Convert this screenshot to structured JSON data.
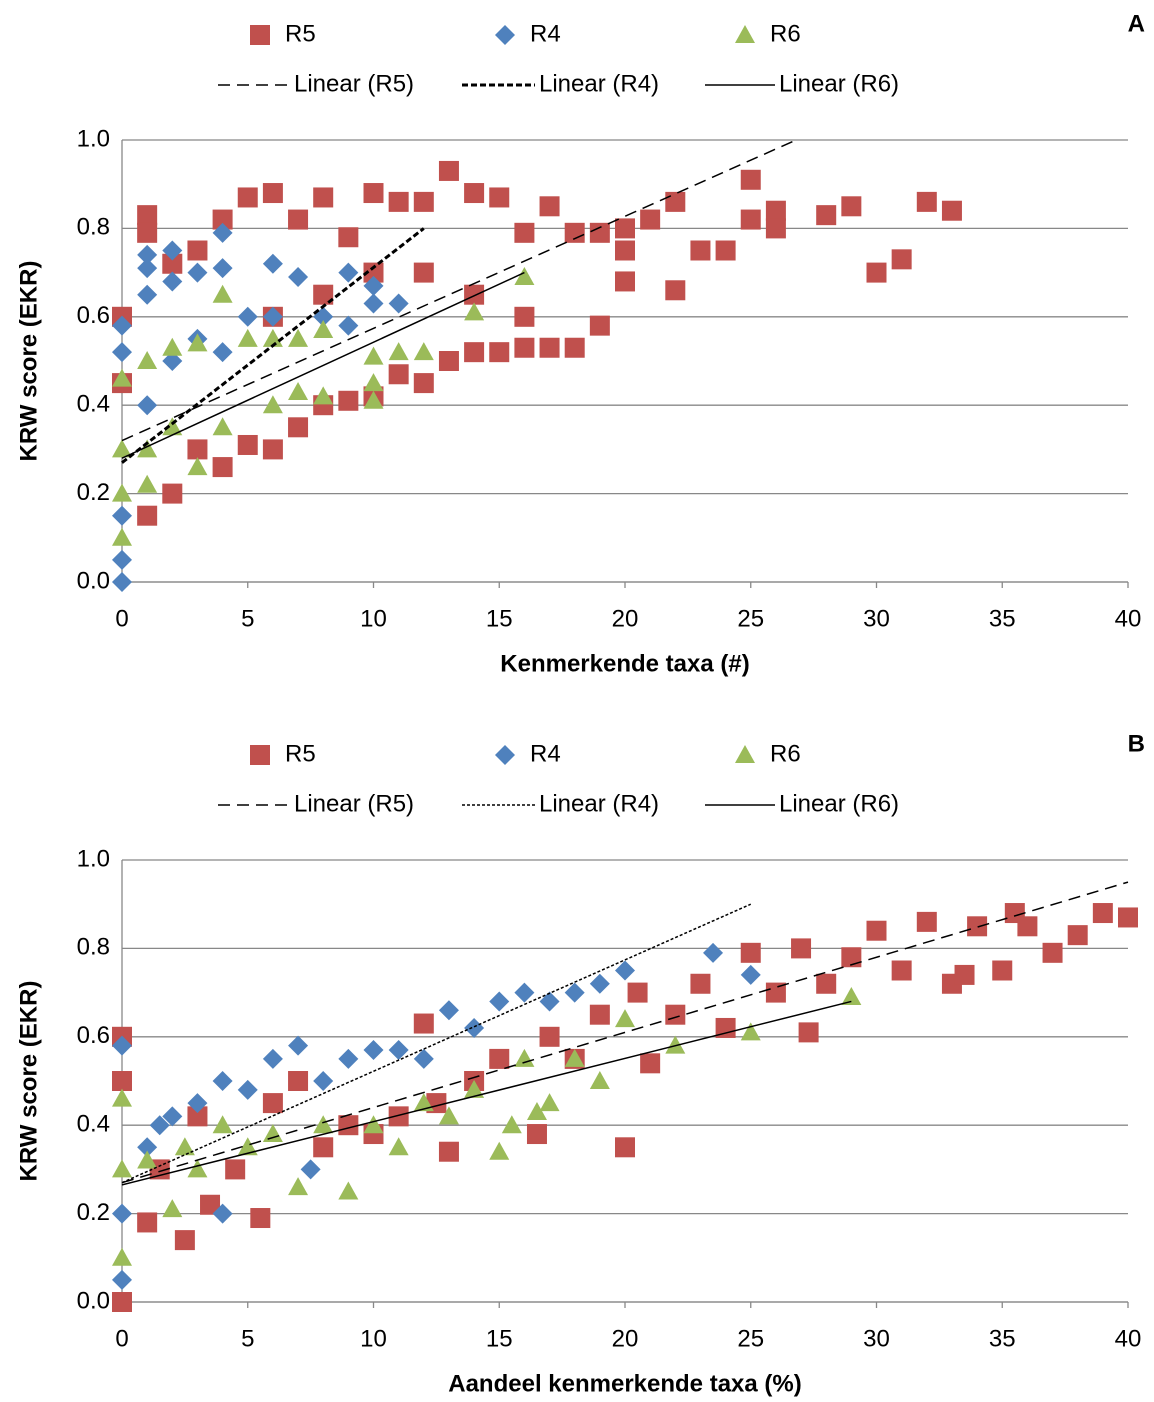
{
  "chart_data": [
    {
      "type": "scatter",
      "panel_label": "A",
      "x_label": "Kenmerkende taxa (#)",
      "y_label": "KRW score (EKR)",
      "xlim": [
        0,
        40
      ],
      "ylim": [
        0,
        1
      ],
      "xticks": [
        0,
        5,
        10,
        15,
        20,
        25,
        30,
        35,
        40
      ],
      "yticks": [
        {
          "value": 0,
          "label": "0.0"
        },
        0.2,
        0.4,
        0.6,
        0.8,
        {
          "value": 1,
          "label": "1.0"
        }
      ],
      "grid": true,
      "series": [
        {
          "name": "R5",
          "color": "#c0504d",
          "marker": "square",
          "x": [
            0,
            0,
            1,
            1,
            1,
            2,
            2,
            3,
            3,
            4,
            4,
            5,
            5,
            6,
            6,
            7,
            7,
            8,
            8,
            9,
            9,
            10,
            10,
            11,
            11,
            12,
            12,
            13,
            13,
            14,
            14,
            15,
            15,
            16,
            16,
            17,
            17,
            18,
            18,
            19,
            19,
            20,
            20,
            21,
            22,
            22,
            23,
            24,
            25,
            25,
            26,
            26,
            28,
            29,
            30,
            31,
            32,
            33,
            6,
            8,
            10,
            12,
            14,
            16,
            20
          ],
          "values": [
            0.6,
            0.45,
            0.83,
            0.15,
            0.79,
            0.2,
            0.72,
            0.75,
            0.3,
            0.82,
            0.26,
            0.87,
            0.31,
            0.88,
            0.3,
            0.82,
            0.35,
            0.87,
            0.4,
            0.78,
            0.41,
            0.88,
            0.42,
            0.86,
            0.47,
            0.86,
            0.45,
            0.93,
            0.5,
            0.88,
            0.52,
            0.87,
            0.52,
            0.79,
            0.53,
            0.85,
            0.53,
            0.53,
            0.79,
            0.58,
            0.79,
            0.8,
            0.68,
            0.82,
            0.86,
            0.66,
            0.75,
            0.75,
            0.91,
            0.82,
            0.84,
            0.8,
            0.83,
            0.85,
            0.7,
            0.73,
            0.86,
            0.84,
            0.6,
            0.65,
            0.7,
            0.7,
            0.65,
            0.6,
            0.75
          ]
        },
        {
          "name": "R4",
          "color": "#4f81bd",
          "marker": "diamond",
          "x": [
            0,
            0,
            0,
            0,
            0,
            1,
            1,
            1,
            1,
            2,
            2,
            2,
            3,
            3,
            4,
            4,
            4,
            5,
            6,
            6,
            7,
            8,
            9,
            10,
            10,
            11,
            9
          ],
          "values": [
            0.58,
            0.52,
            0.05,
            0.0,
            0.15,
            0.74,
            0.71,
            0.65,
            0.4,
            0.75,
            0.68,
            0.5,
            0.7,
            0.55,
            0.79,
            0.71,
            0.52,
            0.6,
            0.72,
            0.6,
            0.69,
            0.6,
            0.7,
            0.67,
            0.63,
            0.63,
            0.58
          ]
        },
        {
          "name": "R6",
          "color": "#9bbb59",
          "marker": "triangle",
          "x": [
            0,
            0,
            0,
            0,
            1,
            1,
            1,
            2,
            2,
            3,
            3,
            4,
            4,
            5,
            6,
            6,
            7,
            7,
            8,
            8,
            10,
            10,
            10,
            11,
            12,
            14,
            16
          ],
          "values": [
            0.46,
            0.3,
            0.1,
            0.2,
            0.5,
            0.3,
            0.22,
            0.53,
            0.35,
            0.54,
            0.26,
            0.65,
            0.35,
            0.55,
            0.55,
            0.4,
            0.55,
            0.43,
            0.57,
            0.42,
            0.51,
            0.45,
            0.41,
            0.52,
            0.52,
            0.61,
            0.69
          ]
        }
      ],
      "trendlines": [
        {
          "name": "Linear (R5)",
          "style": "long-dash",
          "width": 1.5,
          "x": [
            0,
            26.8
          ],
          "values": [
            0.32,
            1.0
          ]
        },
        {
          "name": "Linear (R4)",
          "style": "short-dash",
          "width": 3,
          "x": [
            0,
            12
          ],
          "values": [
            0.27,
            0.8
          ]
        },
        {
          "name": "Linear (R6)",
          "style": "solid",
          "width": 1.5,
          "x": [
            0,
            16
          ],
          "values": [
            0.28,
            0.7
          ]
        }
      ]
    },
    {
      "type": "scatter",
      "panel_label": "B",
      "x_label": "Aandeel kenmerkende taxa (%)",
      "y_label": "KRW score (EKR)",
      "xlim": [
        0,
        40
      ],
      "ylim": [
        0,
        1
      ],
      "xticks": [
        0,
        5,
        10,
        15,
        20,
        25,
        30,
        35,
        40
      ],
      "yticks": [
        {
          "value": 0,
          "label": "0.0"
        },
        0.2,
        0.4,
        0.6,
        0.8,
        {
          "value": 1,
          "label": "1.0"
        }
      ],
      "grid": true,
      "series": [
        {
          "name": "R5",
          "color": "#c0504d",
          "marker": "square",
          "x": [
            0,
            0,
            0,
            1,
            1.5,
            2.5,
            3,
            3.5,
            4.5,
            5.5,
            6,
            7,
            8,
            9,
            10,
            11,
            12,
            12.5,
            13,
            14,
            15,
            16.5,
            17,
            18,
            19,
            20,
            20.5,
            21,
            22,
            23,
            24,
            25,
            26,
            27,
            27.3,
            28,
            29,
            30,
            31,
            32,
            33,
            34,
            35,
            35.5,
            36,
            38,
            39,
            40,
            37,
            33.5
          ],
          "values": [
            0.6,
            0.0,
            0.5,
            0.18,
            0.3,
            0.14,
            0.42,
            0.22,
            0.3,
            0.19,
            0.45,
            0.5,
            0.35,
            0.4,
            0.38,
            0.42,
            0.63,
            0.45,
            0.34,
            0.5,
            0.55,
            0.38,
            0.6,
            0.55,
            0.65,
            0.35,
            0.7,
            0.54,
            0.65,
            0.72,
            0.62,
            0.79,
            0.7,
            0.8,
            0.61,
            0.72,
            0.78,
            0.84,
            0.75,
            0.86,
            0.72,
            0.85,
            0.75,
            0.88,
            0.85,
            0.83,
            0.88,
            0.87,
            0.79,
            0.74
          ]
        },
        {
          "name": "R4",
          "color": "#4f81bd",
          "marker": "diamond",
          "x": [
            0,
            0,
            0,
            1,
            1.5,
            2,
            3,
            4,
            4,
            5,
            6,
            7,
            8,
            9,
            10,
            11,
            12,
            13,
            14,
            15,
            16,
            17,
            18,
            19,
            20,
            23.5,
            25,
            7.5
          ],
          "values": [
            0.58,
            0.05,
            0.2,
            0.35,
            0.4,
            0.42,
            0.45,
            0.5,
            0.2,
            0.48,
            0.55,
            0.58,
            0.5,
            0.55,
            0.57,
            0.57,
            0.55,
            0.66,
            0.62,
            0.68,
            0.7,
            0.68,
            0.7,
            0.72,
            0.75,
            0.79,
            0.74,
            0.3
          ]
        },
        {
          "name": "R6",
          "color": "#9bbb59",
          "marker": "triangle",
          "x": [
            0,
            0,
            0,
            1,
            2,
            2.5,
            3,
            4,
            5,
            6,
            7,
            8,
            9,
            10,
            11,
            12,
            13,
            14,
            15,
            15.5,
            16,
            17,
            18,
            19,
            20,
            22,
            25,
            29,
            16.5
          ],
          "values": [
            0.46,
            0.3,
            0.1,
            0.32,
            0.21,
            0.35,
            0.3,
            0.4,
            0.35,
            0.38,
            0.26,
            0.4,
            0.25,
            0.4,
            0.35,
            0.45,
            0.42,
            0.48,
            0.34,
            0.4,
            0.55,
            0.45,
            0.55,
            0.5,
            0.64,
            0.58,
            0.61,
            0.69,
            0.43
          ]
        }
      ],
      "trendlines": [
        {
          "name": "Linear (R5)",
          "style": "long-dash",
          "width": 1.5,
          "x": [
            0,
            40
          ],
          "values": [
            0.27,
            0.95
          ]
        },
        {
          "name": "Linear (R4)",
          "style": "dotted",
          "width": 1.5,
          "x": [
            0,
            25
          ],
          "values": [
            0.27,
            0.9
          ]
        },
        {
          "name": "Linear (R6)",
          "style": "solid",
          "width": 1.5,
          "x": [
            0,
            29
          ],
          "values": [
            0.265,
            0.68
          ]
        }
      ]
    }
  ]
}
